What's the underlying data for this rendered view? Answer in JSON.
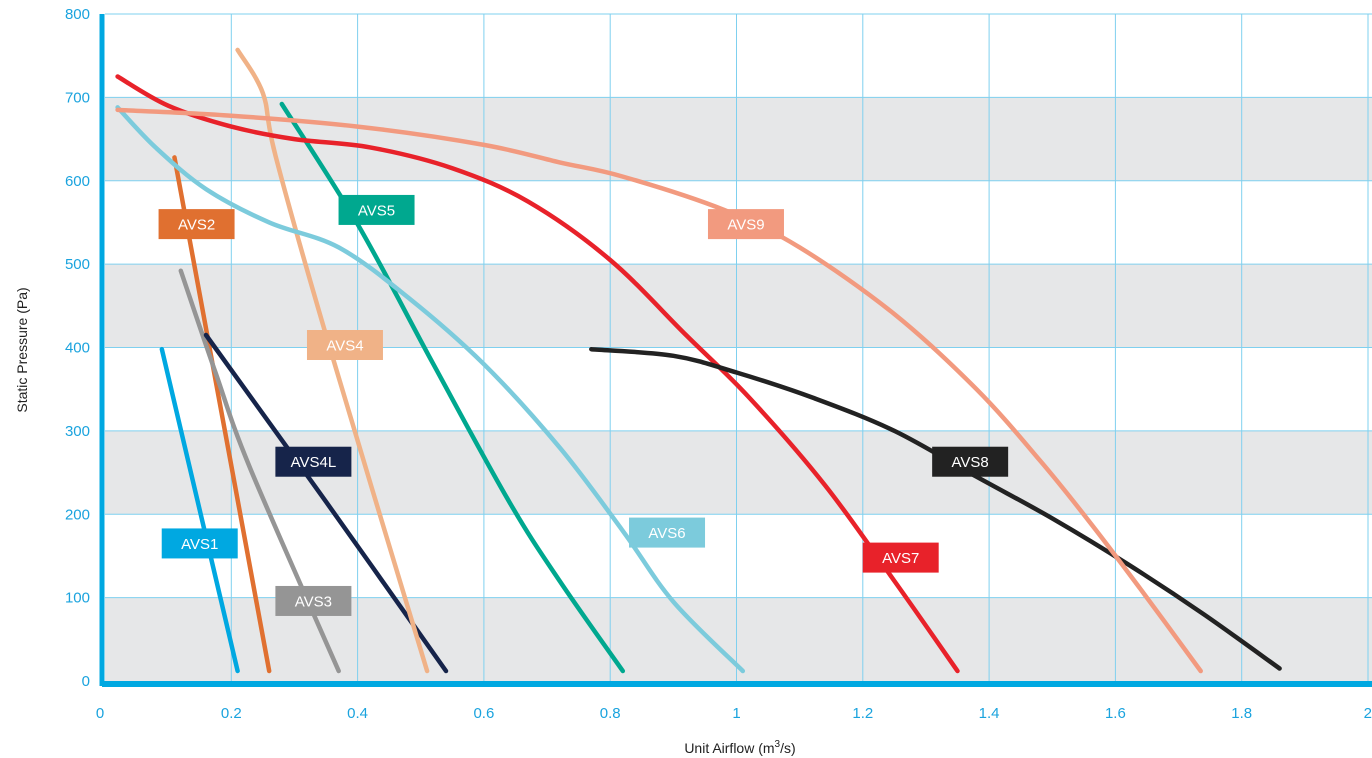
{
  "chart_data": {
    "type": "line",
    "title": "",
    "xlabel": "Unit Airflow (m³/s)",
    "xlabel_base": "Unit Airflow (m",
    "xlabel_sup": "3",
    "xlabel_end": "/s)",
    "ylabel": "Static Pressure (Pa)",
    "xlim": [
      0,
      2
    ],
    "ylim": [
      0,
      800
    ],
    "xticks": [
      0,
      0.2,
      0.4,
      0.6,
      0.8,
      1,
      1.2,
      1.4,
      1.6,
      1.8,
      2
    ],
    "xtick_labels": [
      "0",
      "0.2",
      "0.4",
      "0.6",
      "0.8",
      "1",
      "1.2",
      "1.4",
      "1.6",
      "1.8",
      "2"
    ],
    "yticks": [
      0,
      100,
      200,
      300,
      400,
      500,
      600,
      700,
      800
    ],
    "ytick_labels": [
      "0",
      "100",
      "200",
      "300",
      "400",
      "500",
      "600",
      "700",
      "800"
    ],
    "grid": true,
    "legend": "none",
    "axis_color": "#00a8e1",
    "band_color": "#e6e7e8",
    "grid_color": "#7fd0ef",
    "series": [
      {
        "name": "AVS1",
        "color": "#00a8e1",
        "label_at": [
          0.15,
          165
        ],
        "points": [
          [
            0.09,
            398
          ],
          [
            0.21,
            12
          ]
        ]
      },
      {
        "name": "AVS2",
        "color": "#e07030",
        "label_at": [
          0.145,
          548
        ],
        "points": [
          [
            0.11,
            628
          ],
          [
            0.26,
            12
          ]
        ]
      },
      {
        "name": "AVS3",
        "color": "#959595",
        "label_at": [
          0.33,
          96
        ],
        "points": [
          [
            0.12,
            492
          ],
          [
            0.175,
            370
          ],
          [
            0.23,
            255
          ],
          [
            0.37,
            12
          ]
        ]
      },
      {
        "name": "AVS4L",
        "color": "#16244a",
        "label_at": [
          0.33,
          263
        ],
        "points": [
          [
            0.16,
            415
          ],
          [
            0.35,
            215
          ],
          [
            0.54,
            12
          ]
        ]
      },
      {
        "name": "AVS4",
        "color": "#f0b287",
        "label_at": [
          0.38,
          403
        ],
        "points": [
          [
            0.21,
            757
          ],
          [
            0.25,
            705
          ],
          [
            0.27,
            630
          ],
          [
            0.35,
            415
          ],
          [
            0.51,
            12
          ]
        ]
      },
      {
        "name": "AVS5",
        "color": "#00a88f",
        "label_at": [
          0.43,
          565
        ],
        "points": [
          [
            0.28,
            692
          ],
          [
            0.4,
            548
          ],
          [
            0.52,
            380
          ],
          [
            0.64,
            215
          ],
          [
            0.72,
            120
          ],
          [
            0.82,
            12
          ]
        ]
      },
      {
        "name": "AVS6",
        "color": "#7ccbdc",
        "label_at": [
          0.89,
          178
        ],
        "points": [
          [
            0.02,
            688
          ],
          [
            0.08,
            640
          ],
          [
            0.16,
            590
          ],
          [
            0.26,
            550
          ],
          [
            0.37,
            520
          ],
          [
            0.48,
            460
          ],
          [
            0.6,
            380
          ],
          [
            0.72,
            280
          ],
          [
            0.82,
            180
          ],
          [
            0.9,
            95
          ],
          [
            1.01,
            12
          ]
        ]
      },
      {
        "name": "AVS7",
        "color": "#e8222a",
        "label_at": [
          1.26,
          148
        ],
        "points": [
          [
            0.02,
            725
          ],
          [
            0.1,
            690
          ],
          [
            0.2,
            665
          ],
          [
            0.3,
            650
          ],
          [
            0.42,
            640
          ],
          [
            0.55,
            615
          ],
          [
            0.67,
            575
          ],
          [
            0.8,
            505
          ],
          [
            0.92,
            415
          ],
          [
            1.02,
            340
          ],
          [
            1.14,
            235
          ],
          [
            1.25,
            120
          ],
          [
            1.35,
            12
          ]
        ]
      },
      {
        "name": "AVS8",
        "color": "#222222",
        "label_at": [
          1.37,
          263
        ],
        "points": [
          [
            0.77,
            398
          ],
          [
            0.9,
            390
          ],
          [
            1.0,
            370
          ],
          [
            1.12,
            340
          ],
          [
            1.25,
            300
          ],
          [
            1.38,
            245
          ],
          [
            1.5,
            195
          ],
          [
            1.62,
            140
          ],
          [
            1.74,
            80
          ],
          [
            1.86,
            15
          ]
        ]
      },
      {
        "name": "AVS9",
        "color": "#f29a7f",
        "label_at": [
          1.015,
          548
        ],
        "points": [
          [
            0.02,
            685
          ],
          [
            0.2,
            678
          ],
          [
            0.4,
            665
          ],
          [
            0.6,
            643
          ],
          [
            0.72,
            622
          ],
          [
            0.82,
            605
          ],
          [
            0.98,
            565
          ],
          [
            1.1,
            520
          ],
          [
            1.25,
            440
          ],
          [
            1.38,
            350
          ],
          [
            1.48,
            265
          ],
          [
            1.56,
            190
          ],
          [
            1.64,
            110
          ],
          [
            1.735,
            12
          ]
        ]
      }
    ]
  }
}
